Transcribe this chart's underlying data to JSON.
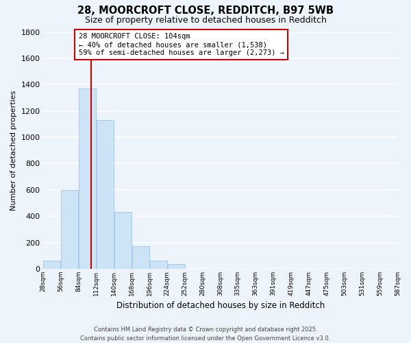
{
  "title": "28, MOORCROFT CLOSE, REDDITCH, B97 5WB",
  "subtitle": "Size of property relative to detached houses in Redditch",
  "xlabel": "Distribution of detached houses by size in Redditch",
  "ylabel": "Number of detached properties",
  "bar_color": "#cce4f5",
  "bar_edge_color": "#a8c8e8",
  "background_color": "#eef4fc",
  "grid_color": "#ffffff",
  "vline_color": "#cc0000",
  "vline_x": 104,
  "bins": [
    28,
    56,
    84,
    112,
    140,
    168,
    196,
    224,
    252,
    280,
    308,
    335,
    363,
    391,
    419,
    447,
    475,
    503,
    531,
    559,
    587
  ],
  "bin_labels": [
    "28sqm",
    "56sqm",
    "84sqm",
    "112sqm",
    "140sqm",
    "168sqm",
    "196sqm",
    "224sqm",
    "252sqm",
    "280sqm",
    "308sqm",
    "335sqm",
    "363sqm",
    "391sqm",
    "419sqm",
    "447sqm",
    "475sqm",
    "503sqm",
    "531sqm",
    "559sqm",
    "587sqm"
  ],
  "counts": [
    60,
    600,
    1370,
    1130,
    430,
    170,
    65,
    35,
    0,
    0,
    0,
    0,
    0,
    0,
    0,
    0,
    0,
    0,
    0,
    0
  ],
  "ylim": [
    0,
    1800
  ],
  "yticks": [
    0,
    200,
    400,
    600,
    800,
    1000,
    1200,
    1400,
    1600,
    1800
  ],
  "annotation_title": "28 MOORCROFT CLOSE: 104sqm",
  "annotation_line1": "← 40% of detached houses are smaller (1,538)",
  "annotation_line2": "59% of semi-detached houses are larger (2,273) →",
  "footer_line1": "Contains HM Land Registry data © Crown copyright and database right 2025.",
  "footer_line2": "Contains public sector information licensed under the Open Government Licence v3.0."
}
